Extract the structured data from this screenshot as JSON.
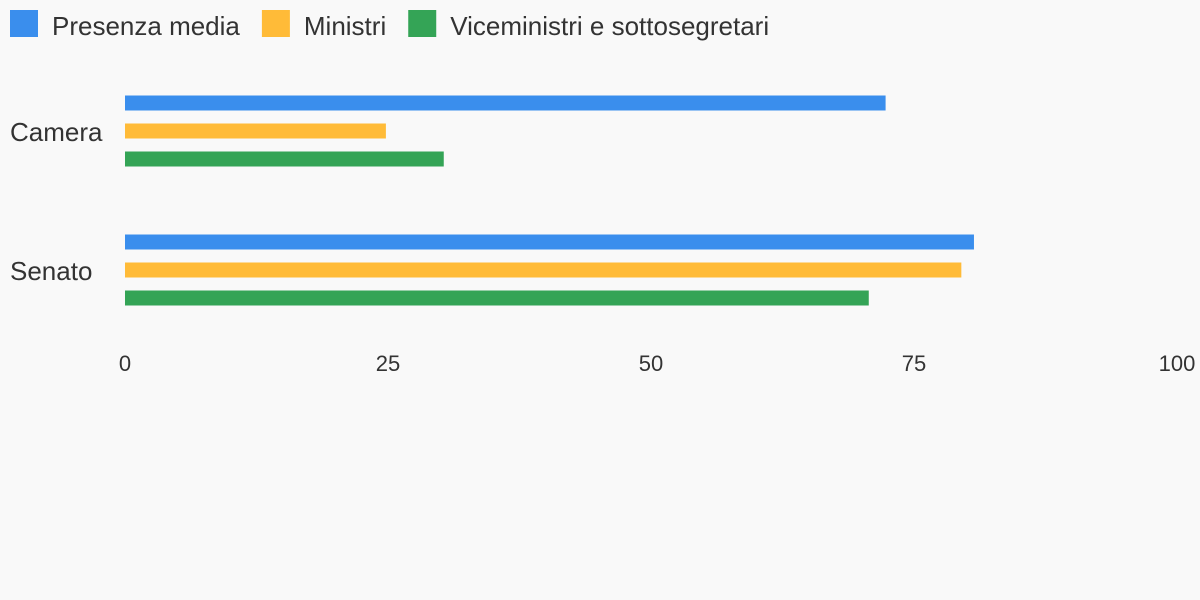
{
  "chart_data": {
    "type": "bar",
    "orientation": "horizontal",
    "categories": [
      "Camera",
      "Senato"
    ],
    "series": [
      {
        "name": "Presenza media",
        "color": "#3a8eed",
        "values": [
          72.3,
          80.7
        ]
      },
      {
        "name": "Ministri",
        "color": "#ffbb38",
        "values": [
          24.8,
          79.5
        ]
      },
      {
        "name": "Viceministri e sottosegretari",
        "color": "#34a456",
        "values": [
          30.3,
          70.7
        ]
      }
    ],
    "xlim": [
      0,
      100
    ],
    "xticks": [
      "0",
      "25",
      "50",
      "75",
      "100"
    ],
    "grid": false,
    "legend": "top-left"
  }
}
